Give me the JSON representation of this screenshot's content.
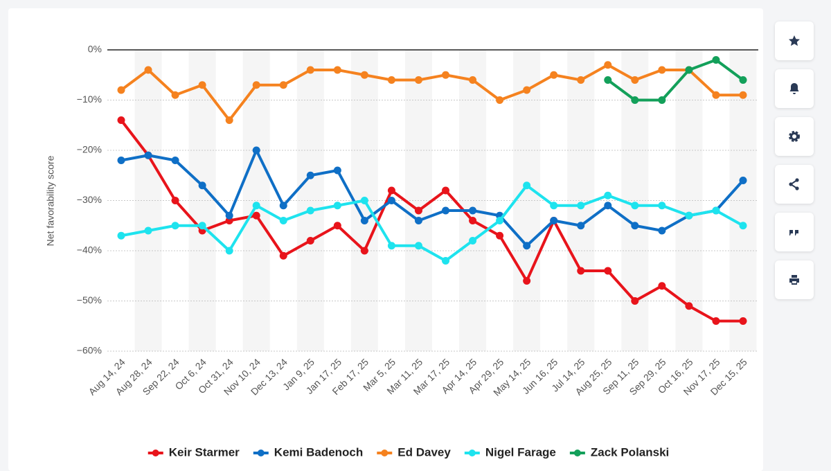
{
  "chart_data": {
    "type": "line",
    "y_label": "Net favorability score",
    "categories": [
      "Aug 14, 24",
      "Aug 28, 24",
      "Sep 22, 24",
      "Oct 6, 24",
      "Oct 31, 24",
      "Nov 10, 24",
      "Dec 13, 24",
      "Jan 9, 25",
      "Jan 17, 25",
      "Feb 17, 25",
      "Mar 5, 25",
      "Mar 11, 25",
      "Mar 17, 25",
      "Apr 14, 25",
      "Apr 29, 25",
      "May 14, 25",
      "Jun 16, 25",
      "Jul 14, 25",
      "Aug 25, 25",
      "Sep 11, 25",
      "Sep 29, 25",
      "Oct 16, 25",
      "Nov 17, 25",
      "Dec 15, 25"
    ],
    "series": [
      {
        "name": "Keir Starmer",
        "color": "#e8141b",
        "values": [
          -14,
          -21,
          -30,
          -36,
          -34,
          -33,
          -41,
          -38,
          -35,
          -40,
          -28,
          -32,
          -28,
          -34,
          -37,
          -46,
          -34,
          -44,
          -44,
          -50,
          -47,
          -51,
          -54,
          -54
        ]
      },
      {
        "name": "Kemi Badenoch",
        "color": "#0f6fc6",
        "values": [
          -22,
          -21,
          -22,
          -27,
          -33,
          -20,
          -31,
          -25,
          -24,
          -34,
          -30,
          -34,
          -32,
          -32,
          -33,
          -39,
          -34,
          -35,
          -31,
          -35,
          -36,
          -33,
          -32,
          -26
        ]
      },
      {
        "name": "Ed Davey",
        "color": "#f5821f",
        "values": [
          -8,
          -4,
          -9,
          -7,
          -14,
          -7,
          -7,
          -4,
          -4,
          -5,
          -6,
          -6,
          -5,
          -6,
          -10,
          -8,
          -5,
          -6,
          -3,
          -6,
          -4,
          -4,
          -9,
          -9
        ]
      },
      {
        "name": "Nigel Farage",
        "color": "#1ee3ee",
        "values": [
          -37,
          -36,
          -35,
          -35,
          -40,
          -31,
          -34,
          -32,
          -31,
          -30,
          -39,
          -39,
          -42,
          -38,
          -34,
          -27,
          -31,
          -31,
          -29,
          -31,
          -31,
          -33,
          -32,
          -35
        ]
      },
      {
        "name": "Zack Polanski",
        "color": "#13a05a",
        "values": [
          null,
          null,
          null,
          null,
          null,
          null,
          null,
          null,
          null,
          null,
          null,
          null,
          null,
          null,
          null,
          null,
          null,
          null,
          -6,
          -10,
          -10,
          -4,
          -2,
          -6
        ]
      }
    ],
    "ylim": [
      -60,
      0
    ],
    "yticks": [
      {
        "value": 0,
        "label": "0%"
      },
      {
        "value": -10,
        "label": "−10%"
      },
      {
        "value": -20,
        "label": "−20%"
      },
      {
        "value": -30,
        "label": "−30%"
      },
      {
        "value": -40,
        "label": "−40%"
      },
      {
        "value": -50,
        "label": "−50%"
      },
      {
        "value": -60,
        "label": "−60%"
      }
    ],
    "grid": true,
    "legend": "bottom"
  }
}
